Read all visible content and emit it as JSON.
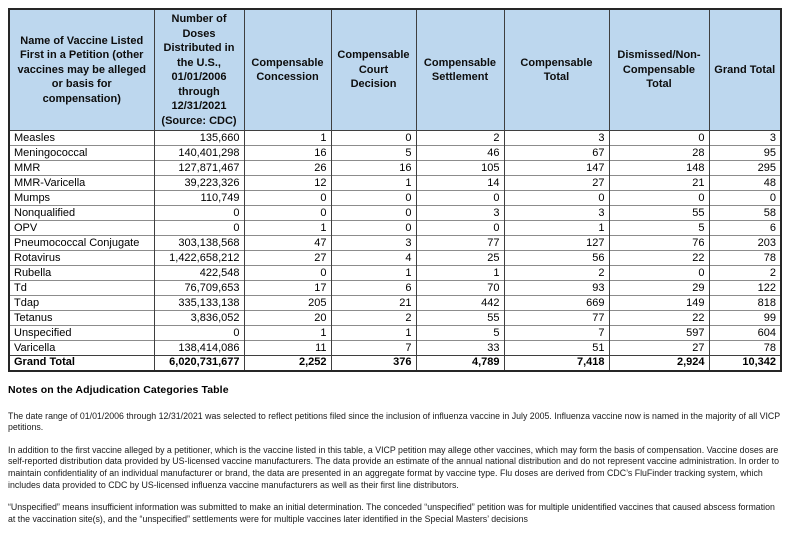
{
  "colors": {
    "header_bg": "#bdd7ee",
    "border_dark": "#3f3f3f",
    "row_line": "#8c8c8c",
    "outer_border": "#262626"
  },
  "table": {
    "headers": [
      "Name of Vaccine Listed First in a Petition (other vaccines may be alleged or basis for compensation)",
      "Number of Doses Distributed in the U.S., 01/01/2006 through 12/31/2021 (Source: CDC)",
      "Compensable Concession",
      "Compensable Court Decision",
      "Compensable Settlement",
      "Compensable Total",
      "Dismissed/Non-Compensable Total",
      "Grand Total"
    ],
    "rows": [
      [
        "Measles",
        "135,660",
        "1",
        "0",
        "2",
        "3",
        "0",
        "3"
      ],
      [
        "Meningococcal",
        "140,401,298",
        "16",
        "5",
        "46",
        "67",
        "28",
        "95"
      ],
      [
        "MMR",
        "127,871,467",
        "26",
        "16",
        "105",
        "147",
        "148",
        "295"
      ],
      [
        "MMR-Varicella",
        "39,223,326",
        "12",
        "1",
        "14",
        "27",
        "21",
        "48"
      ],
      [
        "Mumps",
        "110,749",
        "0",
        "0",
        "0",
        "0",
        "0",
        "0"
      ],
      [
        "Nonqualified",
        "0",
        "0",
        "0",
        "3",
        "3",
        "55",
        "58"
      ],
      [
        "OPV",
        "0",
        "1",
        "0",
        "0",
        "1",
        "5",
        "6"
      ],
      [
        "Pneumococcal Conjugate",
        "303,138,568",
        "47",
        "3",
        "77",
        "127",
        "76",
        "203"
      ],
      [
        "Rotavirus",
        "1,422,658,212",
        "27",
        "4",
        "25",
        "56",
        "22",
        "78"
      ],
      [
        "Rubella",
        "422,548",
        "0",
        "1",
        "1",
        "2",
        "0",
        "2"
      ],
      [
        "Td",
        "76,709,653",
        "17",
        "6",
        "70",
        "93",
        "29",
        "122"
      ],
      [
        "Tdap",
        "335,133,138",
        "205",
        "21",
        "442",
        "669",
        "149",
        "818"
      ],
      [
        "Tetanus",
        "3,836,052",
        "20",
        "2",
        "55",
        "77",
        "22",
        "99"
      ],
      [
        "Unspecified",
        "0",
        "1",
        "1",
        "5",
        "7",
        "597",
        "604"
      ],
      [
        "Varicella",
        "138,414,086",
        "11",
        "7",
        "33",
        "51",
        "27",
        "78"
      ]
    ],
    "grand_total_row": [
      "Grand Total",
      "6,020,731,677",
      "2,252",
      "376",
      "4,789",
      "7,418",
      "2,924",
      "10,342"
    ]
  },
  "notes": {
    "heading": "Notes on the Adjudication Categories Table",
    "paragraphs": [
      "The date range of 01/01/2006 through 12/31/2021 was selected to reflect petitions filed since the inclusion of influenza vaccine in July 2005. Influenza vaccine now is named in the majority of all VICP petitions.",
      "In addition to the first vaccine alleged by a petitioner, which is the vaccine listed in this table, a VICP petition may allege other vaccines, which may form the basis of compensation. Vaccine doses are self-reported distribution data provided by US-licensed vaccine manufacturers. The data provide an estimate of the annual national distribution and do not represent vaccine administration.  In order to maintain confidentiality of an individual manufacturer or brand, the data are presented in an aggregate format by vaccine type. Flu doses are derived from CDC’s FluFinder tracking system, which includes data provided to CDC by US-licensed influenza vaccine manufacturers as well as their first line distributors.",
      "“Unspecified” means insufficient information was submitted to make an initial determination. The conceded “unspecified” petition was for multiple unidentified vaccines that caused abscess formation at the vaccination site(s), and the “unspecified” settlements were for multiple vaccines later identified in the Special Masters’ decisions"
    ]
  }
}
